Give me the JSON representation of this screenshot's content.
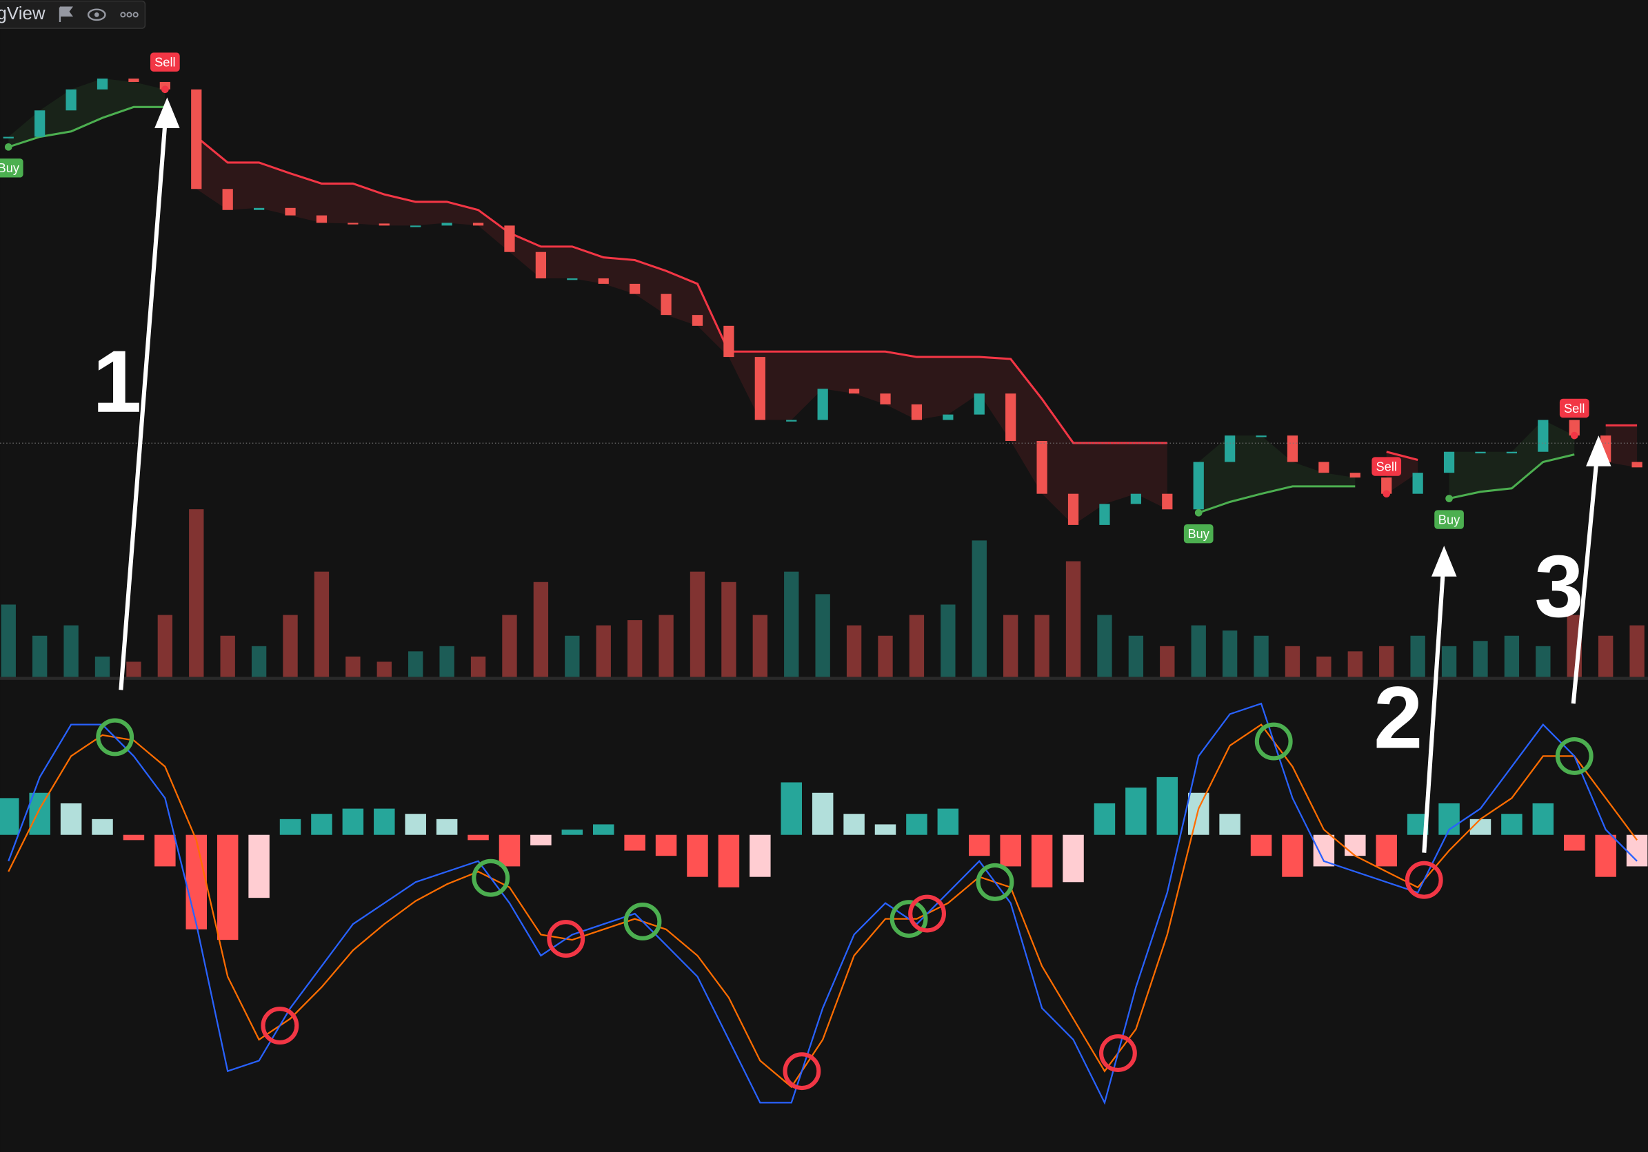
{
  "header": {
    "title": "gView"
  },
  "annotations": [
    "1",
    "2",
    "3"
  ],
  "chart_data": {
    "type": "candlestick",
    "values": [
      79.8,
      83.7,
      86.8,
      88.4,
      87.9,
      86.8,
      72.1,
      69.0,
      69.3,
      68.2,
      67.1,
      67.0,
      66.7,
      66.7,
      67.1,
      66.7,
      62.8,
      58.9,
      58.9,
      58.1,
      56.6,
      53.5,
      51.9,
      47.3,
      38.0,
      38.0,
      42.6,
      41.9,
      40.3,
      38.0,
      38.8,
      41.9,
      34.9,
      27.1,
      22.5,
      25.6,
      27.1,
      24.8,
      31.8,
      35.7,
      35.7,
      31.8,
      30.2,
      29.5,
      27.1,
      30.2,
      33.3,
      33.3,
      33.3,
      38.0,
      35.7,
      31.8,
      31.0
    ],
    "ylim": [
      0,
      100
    ],
    "up_color": "#26a69a",
    "down_color": "#ef5350",
    "support": {
      "color": "#4caf50",
      "fill": "rgba(76,175,80,0.10)",
      "values": [
        78.3,
        79.8,
        80.6,
        82.6,
        84.2,
        84.2,
        null,
        null,
        null,
        null,
        null,
        null,
        null,
        null,
        null,
        null,
        null,
        null,
        null,
        null,
        null,
        null,
        null,
        null,
        null,
        null,
        null,
        null,
        null,
        null,
        null,
        null,
        null,
        null,
        null,
        null,
        null,
        null,
        24.3,
        25.9,
        27.1,
        28.2,
        28.2,
        28.2,
        null,
        null,
        26.4,
        27.4,
        27.9,
        31.8,
        32.9,
        null,
        null
      ]
    },
    "resistance": {
      "color": "#f23645",
      "fill": "rgba(242,54,69,0.12)",
      "values": [
        null,
        null,
        null,
        null,
        null,
        null,
        79.8,
        76.0,
        76.0,
        74.4,
        72.9,
        72.9,
        71.3,
        70.2,
        70.2,
        69.0,
        65.6,
        63.6,
        63.6,
        62.0,
        61.6,
        60.0,
        58.1,
        48.1,
        48.1,
        48.1,
        48.1,
        48.1,
        48.1,
        47.3,
        47.3,
        47.3,
        47.0,
        41.1,
        34.6,
        34.6,
        34.6,
        34.6,
        null,
        null,
        null,
        null,
        null,
        null,
        33.3,
        32.1,
        null,
        null,
        null,
        null,
        null,
        37.2,
        37.2
      ]
    },
    "signals": [
      "Buy",
      null,
      null,
      null,
      null,
      "Sell",
      null,
      null,
      null,
      null,
      null,
      null,
      null,
      null,
      null,
      null,
      null,
      null,
      null,
      null,
      null,
      null,
      null,
      null,
      null,
      null,
      null,
      null,
      null,
      null,
      null,
      null,
      null,
      null,
      null,
      null,
      null,
      null,
      "Buy",
      null,
      null,
      null,
      null,
      null,
      "Sell",
      null,
      "Buy",
      null,
      null,
      null,
      "Sell",
      null,
      null
    ],
    "signal_colors": {
      "Buy": "#4caf50",
      "Sell": "#f23645"
    },
    "volume": {
      "ylim": [
        0,
        100
      ],
      "values": [
        42,
        24,
        30,
        12,
        9,
        36,
        97,
        24,
        18,
        36,
        61,
        12,
        9,
        15,
        18,
        12,
        36,
        55,
        24,
        30,
        33,
        36,
        61,
        55,
        36,
        61,
        48,
        30,
        24,
        36,
        42,
        79,
        36,
        36,
        67,
        36,
        24,
        18,
        30,
        27,
        24,
        18,
        12,
        15,
        18,
        24,
        18,
        21,
        24,
        18,
        36,
        24,
        30
      ]
    },
    "macd_ylim": [
      -30.2,
      13.5
    ],
    "macd": {
      "color": "#2962ff",
      "values": [
        -2.5,
        5.5,
        10.5,
        10.5,
        7.5,
        3.5,
        -8.5,
        -22.5,
        -21.5,
        -16.5,
        -12.5,
        -8.5,
        -6.5,
        -4.5,
        -3.5,
        -2.5,
        -6.5,
        -11.5,
        -9.5,
        -8.5,
        -7.5,
        -10.5,
        -13.5,
        -19.5,
        -25.5,
        -25.5,
        -16.5,
        -9.5,
        -6.5,
        -8.5,
        -5.5,
        -2.5,
        -6.5,
        -16.5,
        -19.5,
        -25.5,
        -14.5,
        -5.5,
        7.5,
        11.5,
        12.5,
        3.5,
        -2.5,
        -3.5,
        -4.5,
        -5.5,
        0.5,
        2.5,
        6.5,
        10.5,
        7.5,
        0.5,
        -2.5
      ]
    },
    "signal_line": {
      "color": "#ff6d00",
      "values": [
        -3.5,
        2.5,
        7.5,
        9.5,
        9,
        6.5,
        -0.5,
        -13.5,
        -19.5,
        -17.5,
        -14.5,
        -11,
        -8.5,
        -6.3,
        -4.7,
        -3.5,
        -5,
        -9.5,
        -10,
        -9,
        -8,
        -9,
        -11.5,
        -15.5,
        -21.5,
        -24,
        -19.5,
        -11.5,
        -8,
        -8,
        -6.5,
        -4,
        -5,
        -12.5,
        -17.5,
        -22.5,
        -18.5,
        -9.5,
        2.5,
        8.5,
        10.5,
        6.5,
        0.5,
        -2,
        -3.5,
        -5,
        -1.5,
        1.5,
        3.5,
        7.5,
        7.5,
        3.5,
        -0.5
      ]
    },
    "histogram": {
      "colors": [
        "#26a69a",
        "#b2dfdb",
        "#ff5252",
        "#ffcdd2"
      ],
      "values": [
        3.5,
        4,
        3,
        1.5,
        -0.5,
        -3,
        -9,
        -10,
        -6,
        1.5,
        2,
        2.5,
        2.5,
        2,
        1.5,
        -0.5,
        -3,
        -1,
        0.5,
        1,
        -1.5,
        -2,
        -4,
        -5,
        -4,
        5,
        4,
        2,
        1,
        2,
        2.5,
        -2,
        -3,
        -5,
        -4.5,
        3,
        4.5,
        5.5,
        4,
        2,
        -2,
        -4,
        -3,
        -2,
        -3,
        2,
        3,
        1.5,
        2,
        3,
        -1.5,
        -4,
        -3
      ]
    },
    "cross_colors": [
      "#4caf50",
      "#f23645"
    ]
  }
}
